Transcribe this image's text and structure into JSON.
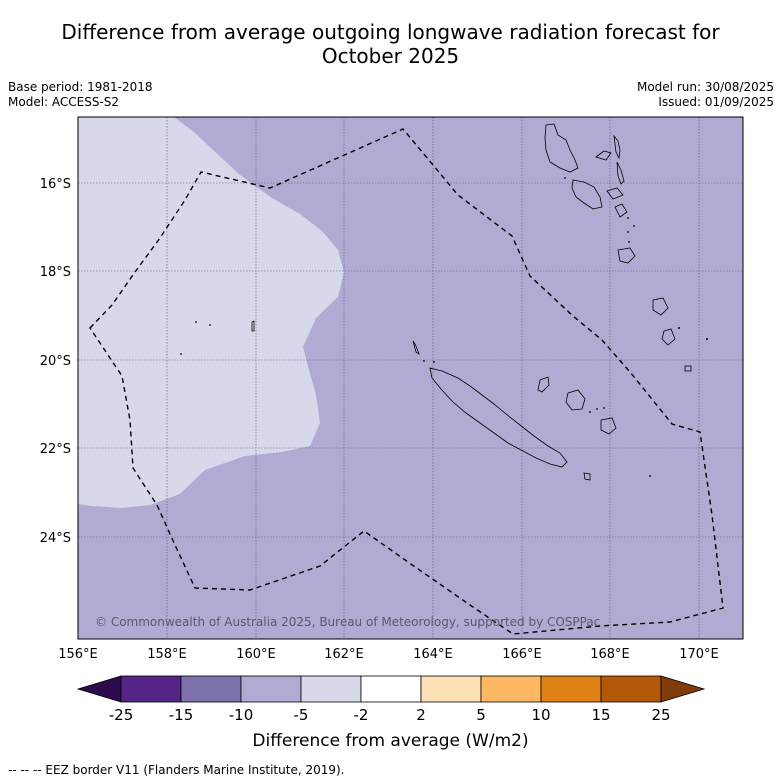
{
  "title_line1": "Difference from average outgoing longwave radiation forecast for",
  "title_line2": "October 2025",
  "base_period": "Base period: 1981-2018",
  "model": "Model: ACCESS-S2",
  "model_run": "Model run: 30/08/2025",
  "issued": "Issued: 01/09/2025",
  "copyright": "© Commonwealth of Australia 2025, Bureau of Meteorology, supported by COSPPac",
  "lat_labels": [
    "16°S",
    "18°S",
    "20°S",
    "22°S",
    "24°S"
  ],
  "lon_labels": [
    "156°E",
    "158°E",
    "160°E",
    "162°E",
    "164°E",
    "166°E",
    "168°E",
    "170°E"
  ],
  "colorbar": {
    "ticks": [
      "-25",
      "-15",
      "-10",
      "-5",
      "-2",
      "2",
      "5",
      "10",
      "15",
      "25"
    ],
    "colors": [
      "#2d0a4e",
      "#542487",
      "#7f72ac",
      "#b1aad2",
      "#d8d8eb",
      "#ffffff",
      "#fee0b6",
      "#fdb863",
      "#e08214",
      "#b35806",
      "#7f3b08"
    ],
    "label": "Difference from average (W/m2)"
  },
  "footer": "--  --  -- EEZ border V11 (Flanders Marine Institute, 2019)."
}
